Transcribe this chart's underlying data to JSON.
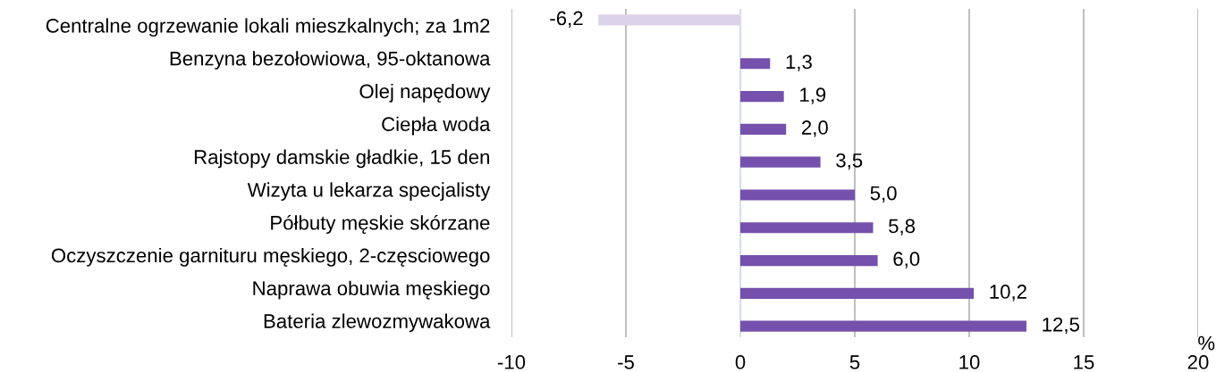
{
  "chart_data": {
    "type": "bar",
    "orientation": "horizontal",
    "xlabel": "%",
    "categories": [
      "Centralne ogrzewanie lokali mieszkalnych; za 1m2",
      "Benzyna bezołowiowa, 95-oktanowa",
      "Olej napędowy",
      "Ciepła woda",
      "Rajstopy damskie gładkie, 15 den",
      "Wizyta u lekarza specjalisty",
      "Półbuty męskie skórzane",
      "Oczyszczenie garnituru męskiego, 2-częsciowego",
      "Naprawa obuwia męskiego",
      "Bateria zlewozmywakowa"
    ],
    "series": [
      {
        "color": "#dcd3ea",
        "values": [
          -6.2,
          null,
          null,
          null,
          null,
          null,
          null,
          null,
          null,
          null
        ],
        "value_labels": [
          "-6,2",
          null,
          null,
          null,
          null,
          null,
          null,
          null,
          null,
          null
        ]
      },
      {
        "color": "#7551ad",
        "values": [
          null,
          1.3,
          1.9,
          2.0,
          3.5,
          5.0,
          5.8,
          6.0,
          10.2,
          12.5
        ],
        "value_labels": [
          null,
          "1,3",
          "1,9",
          "2,0",
          "3,5",
          "5,0",
          "5,8",
          "6,0",
          "10,2",
          "12,5"
        ]
      }
    ],
    "xlim": [
      -10,
      20
    ],
    "xticks": [
      -10,
      -5,
      0,
      5,
      10,
      15,
      20
    ],
    "grid": "x"
  }
}
